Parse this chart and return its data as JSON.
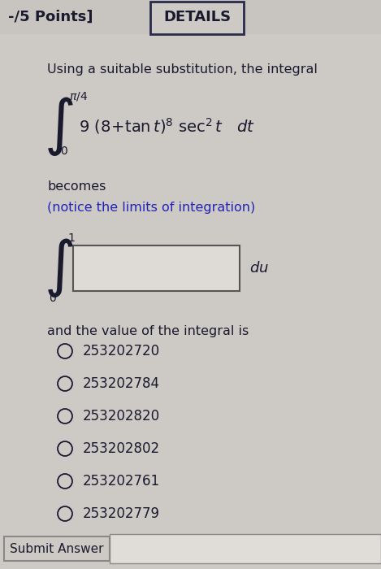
{
  "bg_color": "#cdc9c5",
  "header_bg": "#c8c4c0",
  "title_left": "-/5 Points]",
  "title_right": "DETAILS",
  "body_text1": "Using a suitable substitution, the integral",
  "integral1_body": "9 (8+tan t)⁸ sec² t   dt",
  "becomes_text": "becomes",
  "notice_text": "(notice the limits of integration)",
  "integral2_suffix": "du",
  "and_text": "and the value of the integral is",
  "choices": [
    "253202720",
    "253202784",
    "253202820",
    "253202802",
    "253202761",
    "253202779"
  ],
  "submit_label": "Submit Answer",
  "notice_color": "#2222bb",
  "text_color": "#1a1a2e",
  "details_border_color": "#2a2a4a",
  "submit_border_color": "#888888",
  "box_edge_color": "#555555",
  "box_face_color": "#dedad6"
}
